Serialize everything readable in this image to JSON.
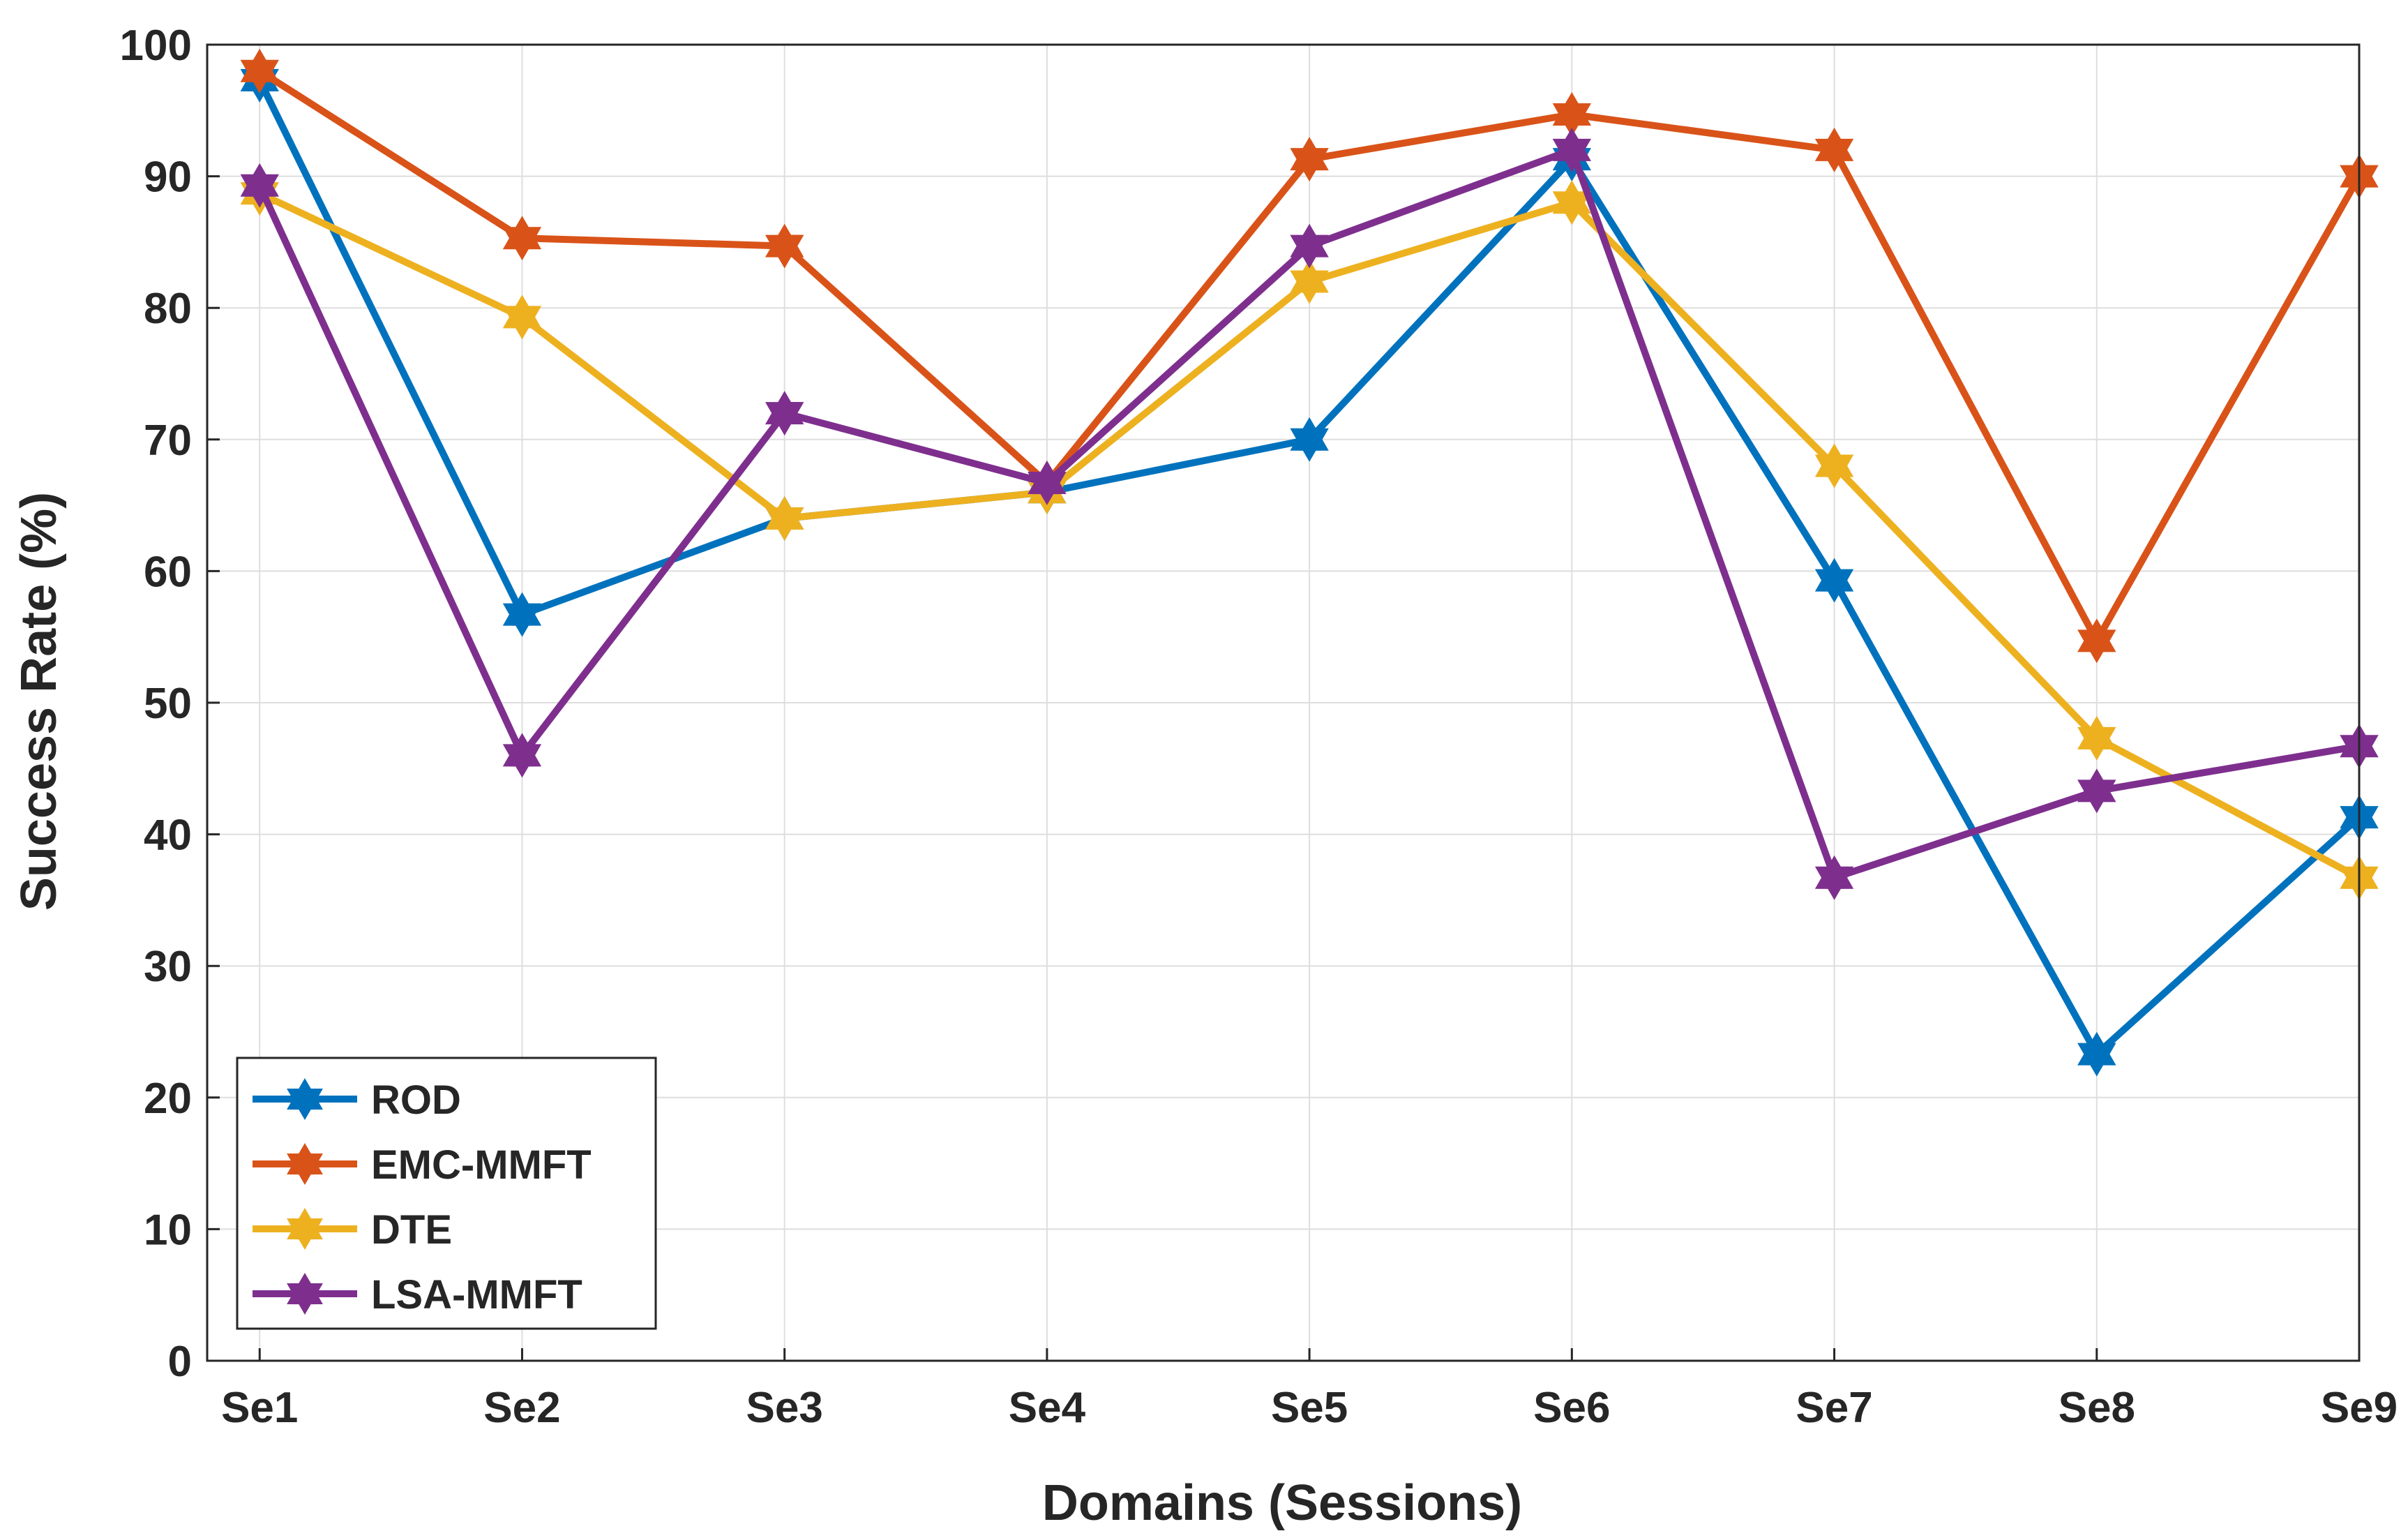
{
  "chart_data": {
    "type": "line",
    "title": "",
    "xlabel": "Domains (Sessions)",
    "ylabel": "Success Rate (%)",
    "categories": [
      "Se1",
      "Se2",
      "Se3",
      "Se4",
      "Se5",
      "Se6",
      "Se7",
      "Se8",
      "Se9"
    ],
    "x_range": [
      -0.2,
      8.0
    ],
    "ylim": [
      0,
      100
    ],
    "yticks": [
      0,
      10,
      20,
      30,
      40,
      50,
      60,
      70,
      80,
      90,
      100
    ],
    "grid": true,
    "legend_position": "bottom-left",
    "marker": "hexagram",
    "series": [
      {
        "name": "ROD",
        "color": "#0072BD",
        "values": [
          97.3,
          56.7,
          64.0,
          66.0,
          70.0,
          91.3,
          59.3,
          23.3,
          41.3
        ]
      },
      {
        "name": "EMC-MMFT",
        "color": "#D95319",
        "values": [
          98.0,
          85.3,
          84.7,
          66.7,
          91.3,
          94.7,
          92.0,
          54.7,
          90.0
        ]
      },
      {
        "name": "DTE",
        "color": "#EDB120",
        "values": [
          88.7,
          79.3,
          64.0,
          66.0,
          82.0,
          88.0,
          68.0,
          47.3,
          36.7
        ]
      },
      {
        "name": "LSA-MMFT",
        "color": "#7E2F8E",
        "values": [
          89.3,
          46.0,
          72.0,
          66.7,
          84.7,
          92.0,
          36.7,
          43.3,
          46.7
        ]
      }
    ]
  }
}
